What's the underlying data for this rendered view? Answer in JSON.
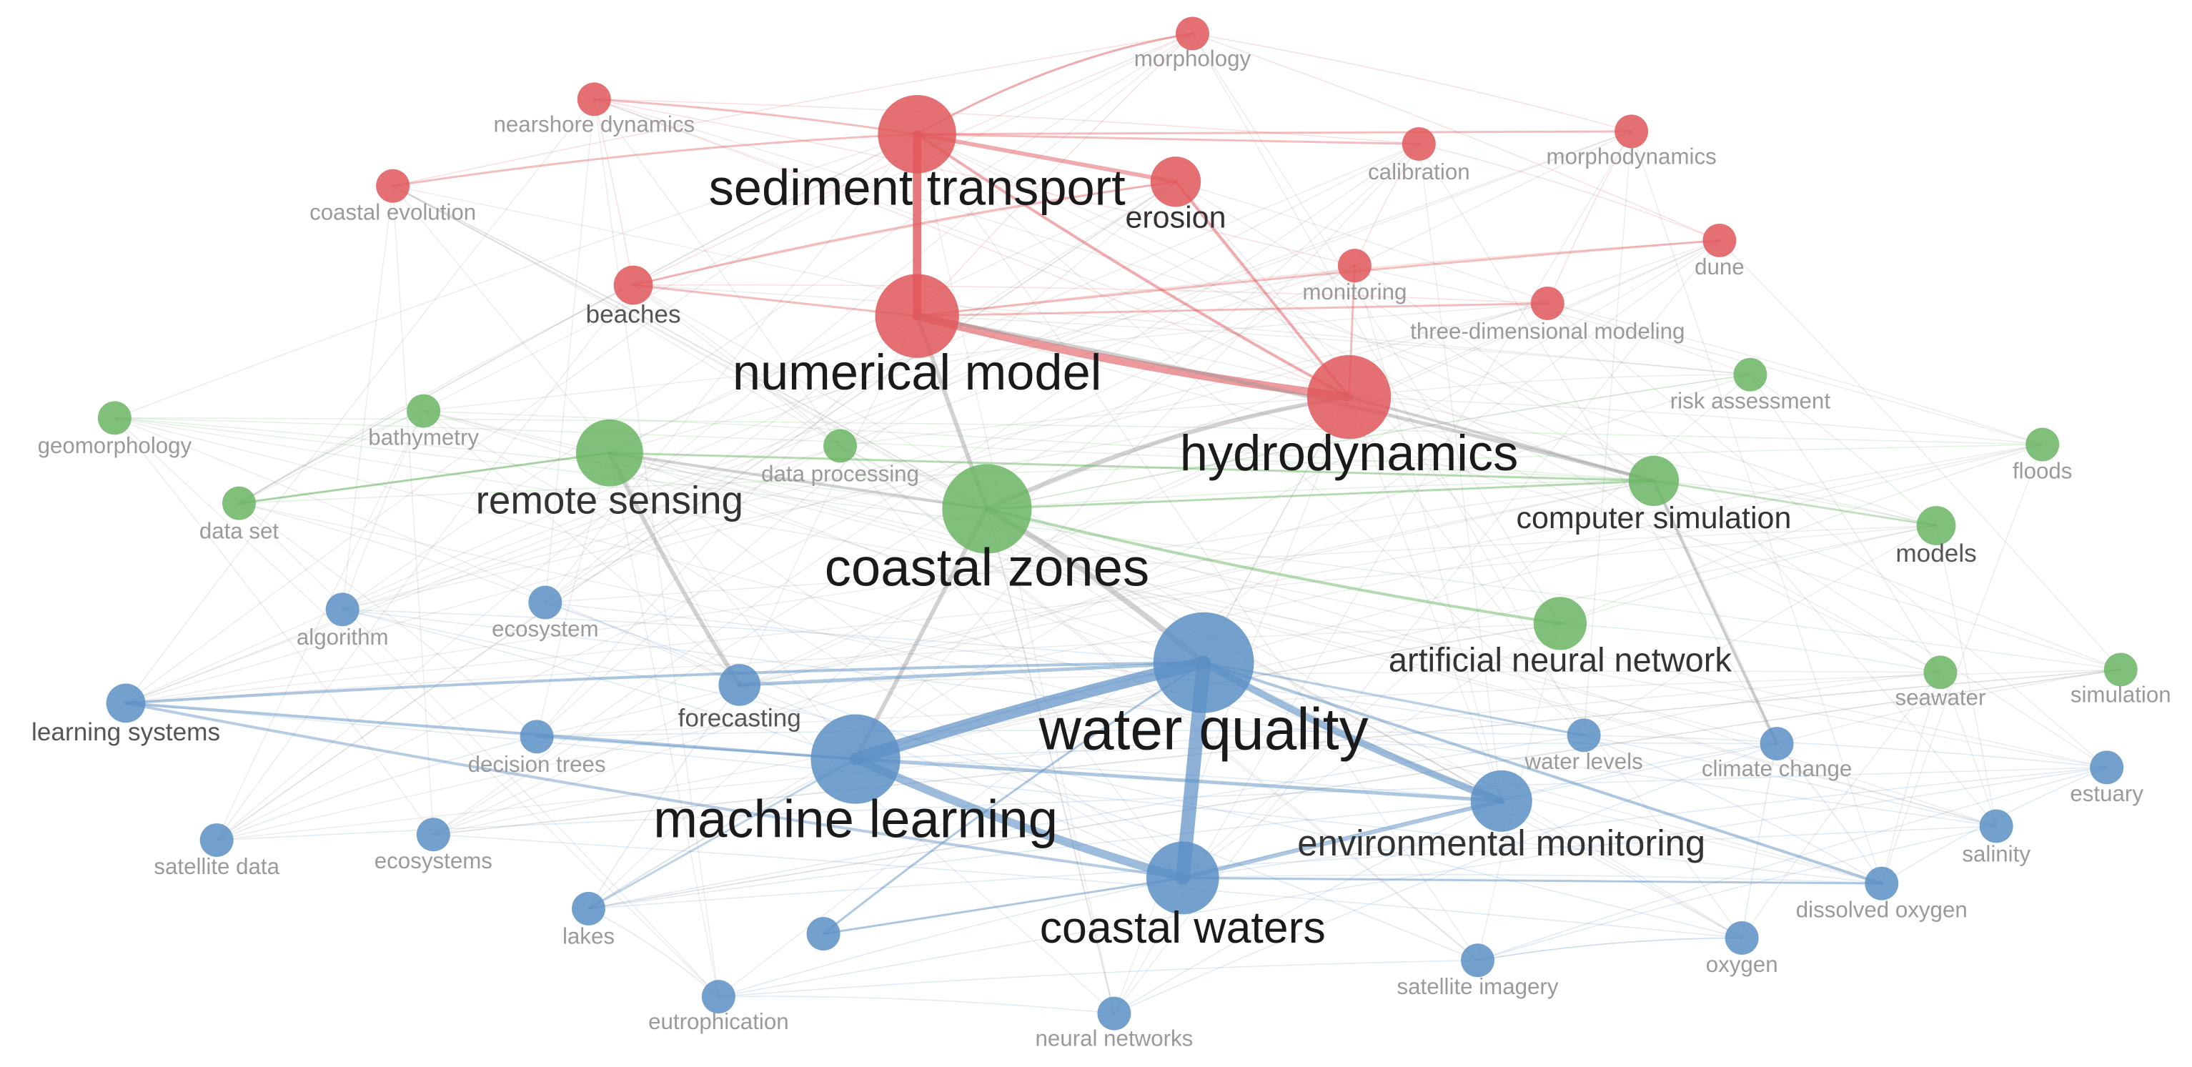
{
  "nodes": [
    {
      "label": "morphology"
    },
    {
      "label": "nearshore dynamics"
    },
    {
      "label": "sediment transport"
    },
    {
      "label": "coastal evolution"
    },
    {
      "label": "erosion"
    },
    {
      "label": "calibration"
    },
    {
      "label": "morphodynamics"
    },
    {
      "label": "dune"
    },
    {
      "label": "beaches"
    },
    {
      "label": "monitoring"
    },
    {
      "label": "three-dimensional modeling"
    },
    {
      "label": "numerical model"
    },
    {
      "label": "hydrodynamics"
    },
    {
      "label": "geomorphology"
    },
    {
      "label": "bathymetry"
    },
    {
      "label": "remote sensing"
    },
    {
      "label": "data processing"
    },
    {
      "label": "data set"
    },
    {
      "label": "coastal zones"
    },
    {
      "label": "risk assessment"
    },
    {
      "label": "floods"
    },
    {
      "label": "computer simulation"
    },
    {
      "label": "models"
    },
    {
      "label": "artificial neural network"
    },
    {
      "label": "seawater"
    },
    {
      "label": "simulation"
    },
    {
      "label": "algorithm"
    },
    {
      "label": "ecosystem"
    },
    {
      "label": "learning systems"
    },
    {
      "label": "forecasting"
    },
    {
      "label": "water quality"
    },
    {
      "label": "decision trees"
    },
    {
      "label": "machine learning"
    },
    {
      "label": "water levels"
    },
    {
      "label": "climate change"
    },
    {
      "label": "estuary"
    },
    {
      "label": "environmental monitoring"
    },
    {
      "label": "satellite data"
    },
    {
      "label": "ecosystems"
    },
    {
      "label": "salinity"
    },
    {
      "label": "coastal waters"
    },
    {
      "label": "dissolved oxygen"
    },
    {
      "label": "lakes"
    },
    {
      "label": "oxygen"
    },
    {
      "label": "satellite imagery"
    },
    {
      "label": "eutrophication"
    },
    {
      "label": "neural networks"
    }
  ]
}
